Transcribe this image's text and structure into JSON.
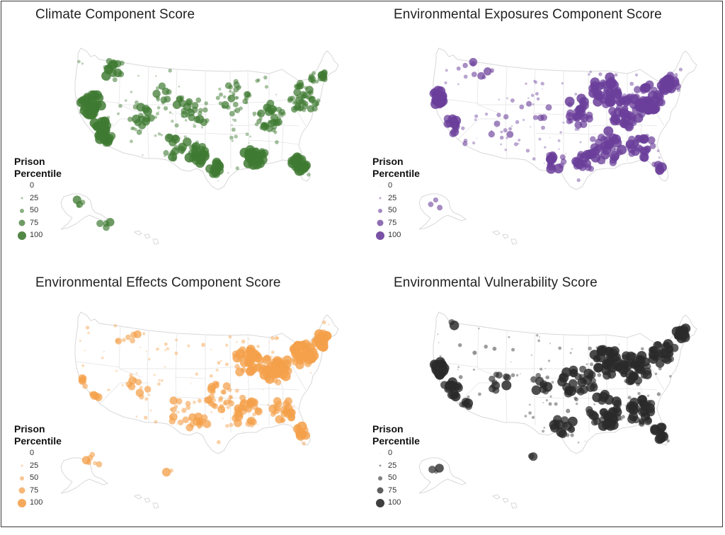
{
  "panels": [
    {
      "id": "climate",
      "title": "Climate Component Score",
      "color": "#3f7a32",
      "style": "climate"
    },
    {
      "id": "exposures",
      "title": "Environmental Exposures Component Score",
      "color": "#6a3e9a",
      "style": "exposures"
    },
    {
      "id": "effects",
      "title": "Environmental Effects Component Score",
      "color": "#f4a04a",
      "style": "effects"
    },
    {
      "id": "vulnerability",
      "title": "Environmental Vulnerability Score",
      "color": "#2a2a2a",
      "style": "vulnerability"
    }
  ],
  "legend": {
    "title_line1": "Prison",
    "title_line2": "Percentile",
    "levels": [
      "0",
      "25",
      "50",
      "75",
      "100"
    ]
  }
}
